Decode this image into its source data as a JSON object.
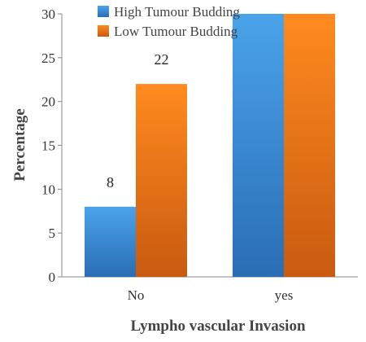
{
  "chart_data": {
    "type": "bar",
    "categories": [
      "No",
      "yes"
    ],
    "series": [
      {
        "name": "High Tumour Budding",
        "values": [
          8,
          30
        ],
        "data_labels": [
          "8",
          ""
        ],
        "color": "#3a8fd9"
      },
      {
        "name": "Low Tumour Budding",
        "values": [
          22,
          30
        ],
        "data_labels": [
          "22",
          ""
        ],
        "color": "#f07a1a"
      }
    ],
    "xlabel": "Lympho vascular Invasion",
    "ylabel": "Percentage",
    "ylim": [
      0,
      30
    ],
    "yticks": [
      "0",
      "5",
      "10",
      "15",
      "20",
      "25",
      "30"
    ],
    "grid": false,
    "legend_position": "top"
  }
}
